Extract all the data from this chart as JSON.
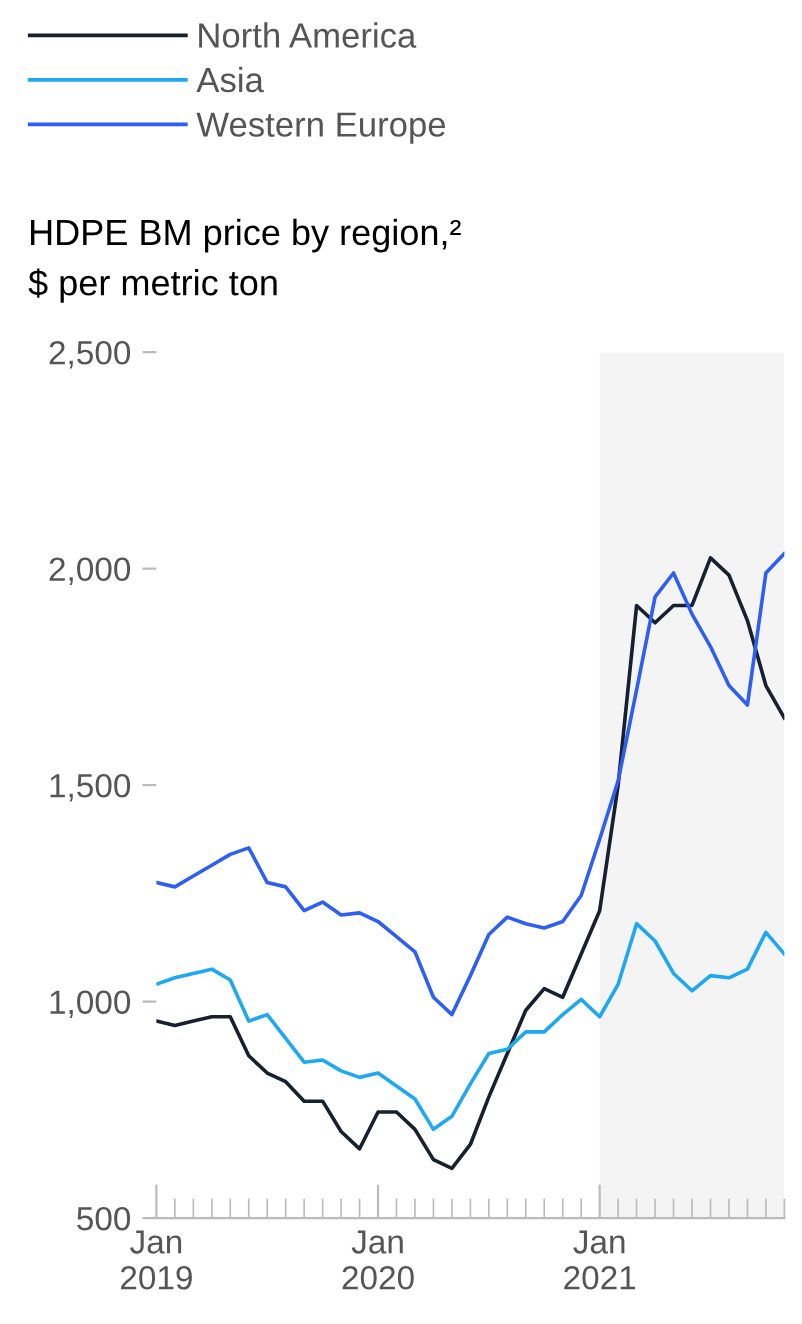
{
  "chart_data": {
    "type": "line",
    "title": "HDPE BM price by region,²",
    "subtitle": "$ per metric ton",
    "x": [
      "2019-01",
      "2019-02",
      "2019-03",
      "2019-04",
      "2019-05",
      "2019-06",
      "2019-07",
      "2019-08",
      "2019-09",
      "2019-10",
      "2019-11",
      "2019-12",
      "2020-01",
      "2020-02",
      "2020-03",
      "2020-04",
      "2020-05",
      "2020-06",
      "2020-07",
      "2020-08",
      "2020-09",
      "2020-10",
      "2020-11",
      "2020-12",
      "2021-01",
      "2021-02",
      "2021-03",
      "2021-04",
      "2021-05",
      "2021-06",
      "2021-07",
      "2021-08",
      "2021-09",
      "2021-10",
      "2021-11"
    ],
    "series": [
      {
        "name": "North America",
        "color": "#17202f",
        "values": [
          955,
          945,
          955,
          965,
          965,
          875,
          835,
          815,
          770,
          770,
          700,
          660,
          745,
          745,
          705,
          635,
          615,
          670,
          780,
          880,
          980,
          1030,
          1010,
          1110,
          1210,
          1500,
          1915,
          1875,
          1915,
          1915,
          2025,
          1985,
          1880,
          1730,
          1655
        ]
      },
      {
        "name": "Asia",
        "color": "#1ea8f2",
        "values": [
          1040,
          1055,
          1065,
          1075,
          1050,
          955,
          970,
          915,
          860,
          865,
          840,
          825,
          835,
          805,
          775,
          705,
          735,
          810,
          880,
          890,
          930,
          930,
          970,
          1005,
          965,
          1040,
          1180,
          1140,
          1065,
          1025,
          1060,
          1055,
          1075,
          1160,
          1110
        ]
      },
      {
        "name": "Western Europe",
        "color": "#2f5ff2",
        "values": [
          1275,
          1265,
          1290,
          1315,
          1340,
          1355,
          1275,
          1265,
          1210,
          1230,
          1200,
          1205,
          1185,
          1150,
          1115,
          1010,
          970,
          1060,
          1155,
          1195,
          1180,
          1170,
          1185,
          1245,
          1375,
          1510,
          1720,
          1935,
          1990,
          1895,
          1820,
          1730,
          1685,
          1990,
          2035
        ]
      }
    ],
    "ylim": [
      500,
      2500
    ],
    "yticks": [
      {
        "value": 500,
        "label": "500"
      },
      {
        "value": 1000,
        "label": "1,000"
      },
      {
        "value": 1500,
        "label": "1,500"
      },
      {
        "value": 2000,
        "label": "2,000"
      },
      {
        "value": 2500,
        "label": "2,500"
      }
    ],
    "xlim": [
      "2019-01",
      "2021-11"
    ],
    "xticks": [
      {
        "value": "2019-01",
        "label": "Jan\n2019"
      },
      {
        "value": "2019-02",
        "label": null
      },
      {
        "value": "2019-03",
        "label": null
      },
      {
        "value": "2019-04",
        "label": null
      },
      {
        "value": "2019-05",
        "label": null
      },
      {
        "value": "2019-06",
        "label": null
      },
      {
        "value": "2019-07",
        "label": null
      },
      {
        "value": "2019-08",
        "label": null
      },
      {
        "value": "2019-09",
        "label": null
      },
      {
        "value": "2019-10",
        "label": null
      },
      {
        "value": "2019-11",
        "label": null
      },
      {
        "value": "2019-12",
        "label": null
      },
      {
        "value": "2020-01",
        "label": "Jan\n2020"
      },
      {
        "value": "2020-02",
        "label": null
      },
      {
        "value": "2020-03",
        "label": null
      },
      {
        "value": "2020-04",
        "label": null
      },
      {
        "value": "2020-05",
        "label": null
      },
      {
        "value": "2020-06",
        "label": null
      },
      {
        "value": "2020-07",
        "label": null
      },
      {
        "value": "2020-08",
        "label": null
      },
      {
        "value": "2020-09",
        "label": null
      },
      {
        "value": "2020-10",
        "label": null
      },
      {
        "value": "2020-11",
        "label": null
      },
      {
        "value": "2020-12",
        "label": null
      },
      {
        "value": "2021-01",
        "label": "Jan\n2021"
      },
      {
        "value": "2021-02",
        "label": null
      },
      {
        "value": "2021-03",
        "label": null
      },
      {
        "value": "2021-04",
        "label": null
      },
      {
        "value": "2021-05",
        "label": null
      },
      {
        "value": "2021-06",
        "label": null
      },
      {
        "value": "2021-07",
        "label": null
      },
      {
        "value": "2021-08",
        "label": null
      },
      {
        "value": "2021-09",
        "label": null
      },
      {
        "value": "2021-10",
        "label": null
      },
      {
        "value": "2021-11",
        "label": null
      }
    ],
    "bands": [
      {
        "axis": "x",
        "from": "2021-01",
        "to": "2021-11",
        "color": "#f4f4f4"
      }
    ],
    "grid": false,
    "legend": "top left",
    "marker": "none",
    "line_style": "solid"
  }
}
